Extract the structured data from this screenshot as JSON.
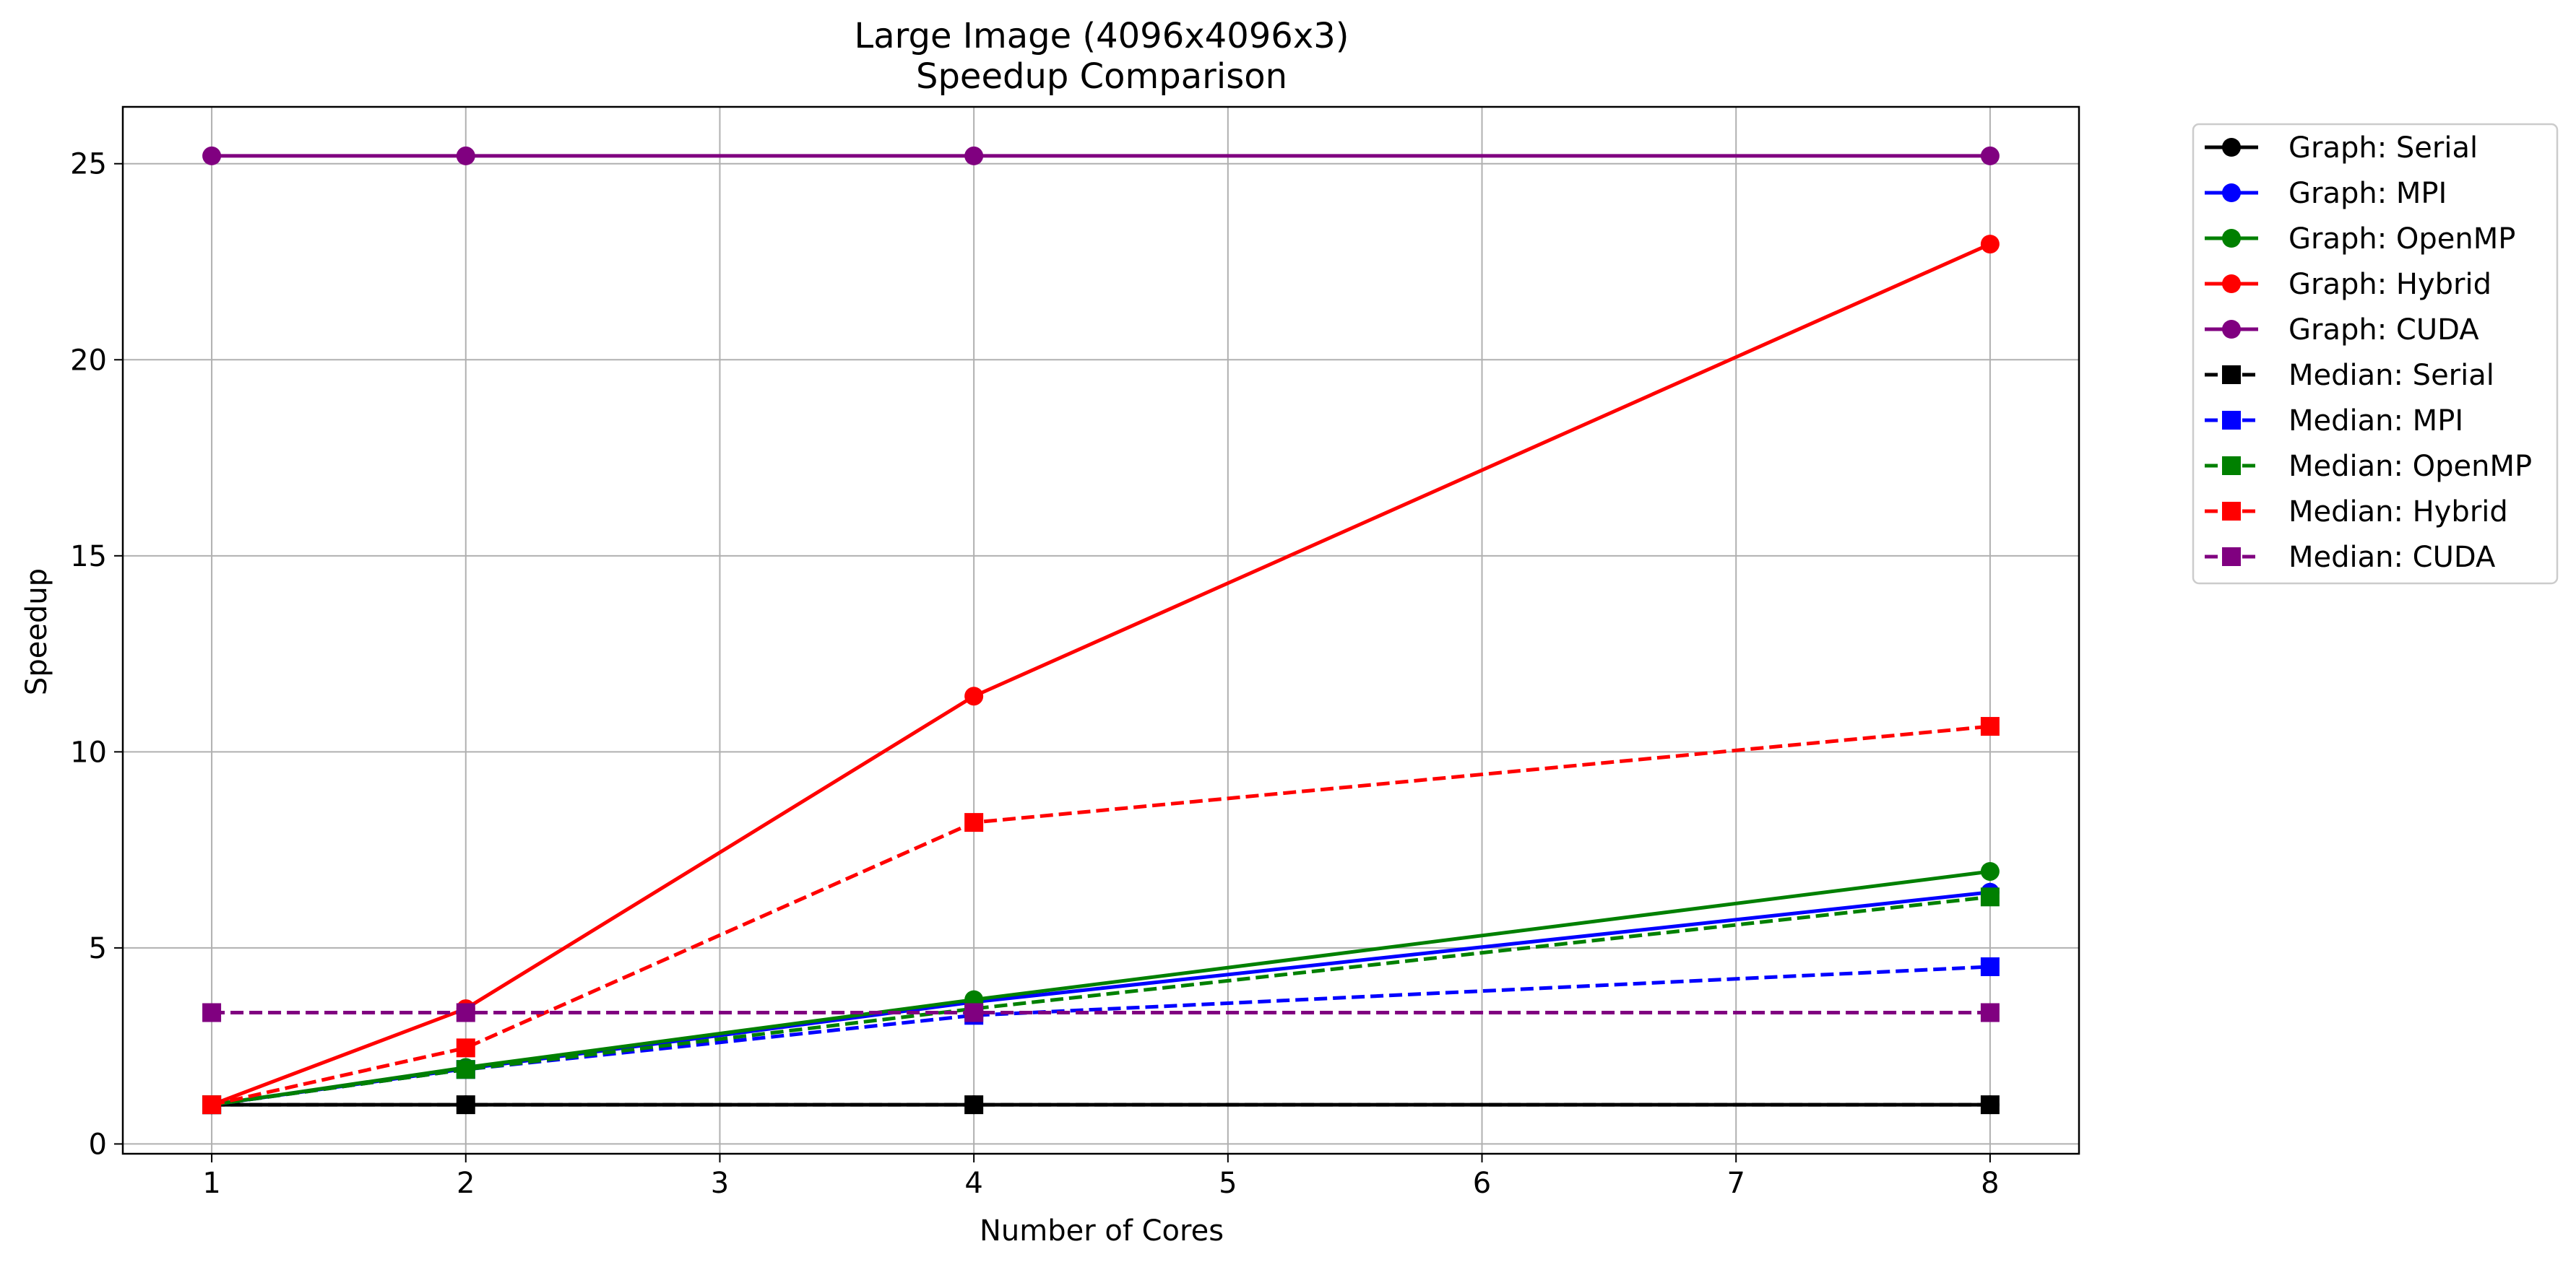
{
  "chart_data": {
    "type": "line",
    "title_line1": "Large Image (4096x4096x3)",
    "title_line2": "Speedup Comparison",
    "xlabel": "Number of Cores",
    "ylabel": "Speedup",
    "xlim": [
      0.65,
      8.35
    ],
    "ylim": [
      -0.25,
      26.45
    ],
    "xticks": [
      1,
      2,
      3,
      4,
      5,
      6,
      7,
      8
    ],
    "yticks": [
      0,
      5,
      10,
      15,
      20,
      25
    ],
    "grid": true,
    "legend_position": "outside-right-top",
    "x": [
      1,
      2,
      4,
      8
    ],
    "series": [
      {
        "name": "Graph: Serial",
        "color": "#000000",
        "dash": false,
        "marker": "circle",
        "values": [
          1,
          1,
          1,
          1
        ]
      },
      {
        "name": "Graph: MPI",
        "color": "#0000ff",
        "dash": false,
        "marker": "circle",
        "values": [
          1,
          1.92,
          3.62,
          6.42
        ]
      },
      {
        "name": "Graph: OpenMP",
        "color": "#008000",
        "dash": false,
        "marker": "circle",
        "values": [
          1,
          1.95,
          3.68,
          6.95
        ]
      },
      {
        "name": "Graph: Hybrid",
        "color": "#ff0000",
        "dash": false,
        "marker": "circle",
        "values": [
          1,
          3.45,
          11.42,
          22.95
        ]
      },
      {
        "name": "Graph: CUDA",
        "color": "#800080",
        "dash": false,
        "marker": "circle",
        "values": [
          25.2,
          25.2,
          25.2,
          25.2
        ]
      },
      {
        "name": "Median: Serial",
        "color": "#000000",
        "dash": true,
        "marker": "square",
        "values": [
          1,
          1,
          1,
          1
        ]
      },
      {
        "name": "Median: MPI",
        "color": "#0000ff",
        "dash": true,
        "marker": "square",
        "values": [
          1,
          1.9,
          3.28,
          4.52
        ]
      },
      {
        "name": "Median: OpenMP",
        "color": "#008000",
        "dash": true,
        "marker": "square",
        "values": [
          1,
          1.9,
          3.45,
          6.3
        ]
      },
      {
        "name": "Median: Hybrid",
        "color": "#ff0000",
        "dash": true,
        "marker": "square",
        "values": [
          1,
          2.45,
          8.2,
          10.65
        ]
      },
      {
        "name": "Median: CUDA",
        "color": "#800080",
        "dash": true,
        "marker": "square",
        "values": [
          3.35,
          3.35,
          3.35,
          3.35
        ]
      }
    ]
  }
}
